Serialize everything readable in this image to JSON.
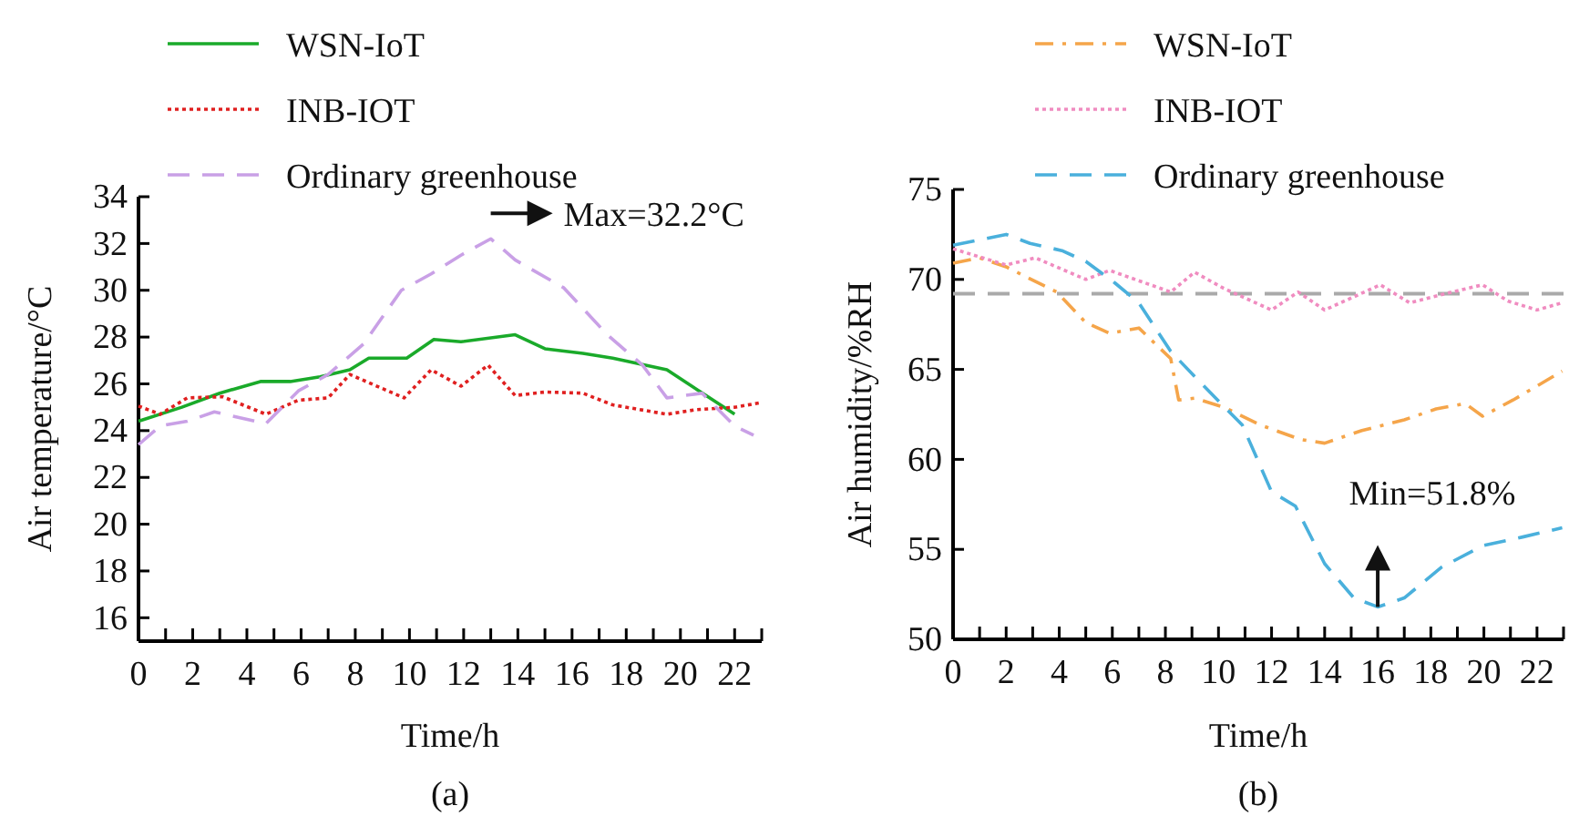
{
  "chart_data": [
    {
      "type": "line",
      "xlabel": "Time/h",
      "ylabel": "Air temperature/°C",
      "legend": "top",
      "xlim": [
        0,
        23
      ],
      "ylim": [
        15,
        34
      ],
      "xticks": [
        0,
        {
          "value": 1,
          "label": null
        },
        2,
        {
          "value": 3,
          "label": null
        },
        4,
        {
          "value": 5,
          "label": null
        },
        6,
        {
          "value": 7,
          "label": null
        },
        8,
        {
          "value": 9,
          "label": null
        },
        10,
        {
          "value": 11,
          "label": null
        },
        12,
        {
          "value": 13,
          "label": null
        },
        14,
        {
          "value": 15,
          "label": null
        },
        16,
        {
          "value": 17,
          "label": null
        },
        18,
        {
          "value": 19,
          "label": null
        },
        20,
        {
          "value": 21,
          "label": null
        },
        22,
        {
          "value": 23,
          "label": null
        }
      ],
      "yticks": [
        16,
        18,
        20,
        22,
        24,
        26,
        28,
        30,
        32,
        34
      ],
      "series": [
        {
          "name": "WSN-IoT",
          "color": "#1aaa2a",
          "line_style": "solid",
          "x": [
            0,
            1.6,
            3,
            4.5,
            5.6,
            6.7,
            7.8,
            8.5,
            9.9,
            10.9,
            11.9,
            13.9,
            15,
            16.4,
            17.5,
            19.5,
            22
          ],
          "values": [
            24.4,
            25.0,
            25.6,
            26.1,
            26.1,
            26.3,
            26.6,
            27.1,
            27.1,
            27.9,
            27.8,
            28.1,
            27.5,
            27.3,
            27.1,
            26.6,
            24.7
          ]
        },
        {
          "name": "INB-IOT",
          "color": "#e02020",
          "line_style": "dotted",
          "x": [
            0,
            0.8,
            1.8,
            3.1,
            4.7,
            5.9,
            7,
            7.8,
            8.8,
            9.8,
            10.8,
            11.9,
            12.9,
            13.9,
            15,
            16.4,
            17.5,
            19.5,
            20.6,
            22,
            23
          ],
          "values": [
            25.05,
            24.7,
            25.4,
            25.45,
            24.7,
            25.3,
            25.4,
            26.4,
            25.9,
            25.4,
            26.6,
            25.9,
            26.8,
            25.5,
            25.65,
            25.6,
            25.1,
            24.7,
            24.9,
            25.0,
            25.2
          ]
        },
        {
          "name": "Ordinary greenhouse",
          "color": "#c9a0e6",
          "line_style": "dashed",
          "x": [
            0,
            0.8,
            1.8,
            2.8,
            4.7,
            5.9,
            7,
            8.3,
            9.7,
            10.8,
            11.9,
            13,
            13.9,
            15.7,
            17.3,
            18.6,
            19.5,
            20.8,
            22,
            22.7
          ],
          "values": [
            23.4,
            24.2,
            24.4,
            24.8,
            24.3,
            25.7,
            26.4,
            27.7,
            30.0,
            30.7,
            31.5,
            32.2,
            31.3,
            30.1,
            28.1,
            26.8,
            25.4,
            25.6,
            24.2,
            23.8
          ]
        }
      ],
      "annotations": [
        {
          "text": "Max=32.2°C",
          "x": 13,
          "y": 32.2
        },
        "(a)"
      ]
    },
    {
      "type": "line",
      "xlabel": "Time/h",
      "ylabel": "Air humidity/%RH",
      "legend": "top",
      "xlim": [
        0,
        23
      ],
      "ylim": [
        50,
        75
      ],
      "xticks": [
        0,
        {
          "value": 1,
          "label": null
        },
        2,
        {
          "value": 3,
          "label": null
        },
        4,
        {
          "value": 5,
          "label": null
        },
        6,
        {
          "value": 7,
          "label": null
        },
        8,
        {
          "value": 9,
          "label": null
        },
        10,
        {
          "value": 11,
          "label": null
        },
        12,
        {
          "value": 13,
          "label": null
        },
        14,
        {
          "value": 15,
          "label": null
        },
        16,
        {
          "value": 17,
          "label": null
        },
        18,
        {
          "value": 19,
          "label": null
        },
        20,
        {
          "value": 21,
          "label": null
        },
        22,
        {
          "value": 23,
          "label": null
        }
      ],
      "yticks": [
        50,
        55,
        60,
        65,
        70,
        75
      ],
      "series": [
        {
          "name": "WSN-IoT",
          "color": "#f5a54a",
          "line_style": "dashdot",
          "x": [
            0,
            1,
            2,
            3.9,
            5,
            5.9,
            7,
            8.2,
            8.5,
            9.1,
            10.2,
            11.6,
            13.1,
            14,
            15.4,
            17,
            18.2,
            19.3,
            19.95,
            21.1,
            22.95
          ],
          "values": [
            70.9,
            71.2,
            70.7,
            69.3,
            67.6,
            67.0,
            67.3,
            65.6,
            63.3,
            63.4,
            62.9,
            61.9,
            61.1,
            60.9,
            61.6,
            62.2,
            62.8,
            63.1,
            62.4,
            63.3,
            64.9
          ]
        },
        {
          "name": "INB-IOT",
          "color": "#f08cc0",
          "line_style": "dotted",
          "x": [
            0,
            2,
            3.1,
            5,
            5.9,
            8.2,
            9.1,
            10.2,
            12,
            13,
            14,
            16.1,
            17.2,
            18.8,
            19.95,
            20.9,
            22,
            22.95
          ],
          "values": [
            71.7,
            70.8,
            71.2,
            70.0,
            70.5,
            69.3,
            70.4,
            69.5,
            68.3,
            69.3,
            68.3,
            69.7,
            68.7,
            69.3,
            69.7,
            68.8,
            68.3,
            68.7
          ]
        },
        {
          "name": "Ordinary greenhouse",
          "color": "#4ab0dc",
          "line_style": "dashed",
          "x": [
            0,
            2,
            2.9,
            4.1,
            5,
            6.1,
            7,
            8.2,
            9.3,
            10.9,
            12,
            12.9,
            14,
            15.1,
            16,
            17,
            18.4,
            19.95,
            21.5,
            22.95
          ],
          "values": [
            71.9,
            72.5,
            72.0,
            71.6,
            71.0,
            69.8,
            68.7,
            66.0,
            64.3,
            61.9,
            58.2,
            57.4,
            54.2,
            52.3,
            51.8,
            52.3,
            54.0,
            55.2,
            55.7,
            56.2
          ]
        }
      ],
      "ref_lines": [
        {
          "axis": "y",
          "value": 69.2,
          "color": "#aaaaaa",
          "line_style": "dashed"
        }
      ],
      "annotations": [
        {
          "text": "Min=51.8%",
          "x": 16,
          "y": 51.8
        },
        "(b)"
      ]
    }
  ]
}
